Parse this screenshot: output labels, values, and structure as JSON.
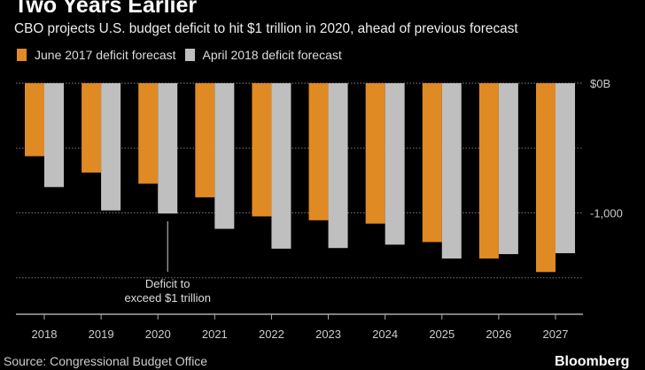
{
  "chart_data": {
    "type": "bar",
    "title": "Two Years Earlier",
    "subtitle": "CBO projects U.S. budget deficit to hit $1 trillion in 2020, ahead of previous forecast",
    "categories": [
      "2018",
      "2019",
      "2020",
      "2021",
      "2022",
      "2023",
      "2024",
      "2025",
      "2026",
      "2027"
    ],
    "series": [
      {
        "name": "June 2017 deficit forecast",
        "color": "#e08a24",
        "values": [
          -563,
          -689,
          -775,
          -880,
          -1027,
          -1057,
          -1083,
          -1225,
          -1352,
          -1456
        ]
      },
      {
        "name": "April 2018 deficit forecast",
        "color": "#bfbfbf",
        "values": [
          -801,
          -981,
          -1005,
          -1123,
          -1276,
          -1271,
          -1245,
          -1352,
          -1318,
          -1311
        ]
      }
    ],
    "yticks": [
      {
        "value": 0,
        "label": "$0B"
      },
      {
        "value": -1000,
        "label": "-1,000"
      }
    ],
    "gridlines": [
      -500,
      -1000,
      -1500
    ],
    "ylim": [
      -1800,
      0
    ],
    "annotation": {
      "category": "2020",
      "line1": "Deficit to",
      "line2": "exceed $1 trillion"
    },
    "legend_position": "top-left",
    "grid": true
  },
  "footer": {
    "source": "Source: Congressional Budget Office",
    "logo": "Bloomberg"
  }
}
